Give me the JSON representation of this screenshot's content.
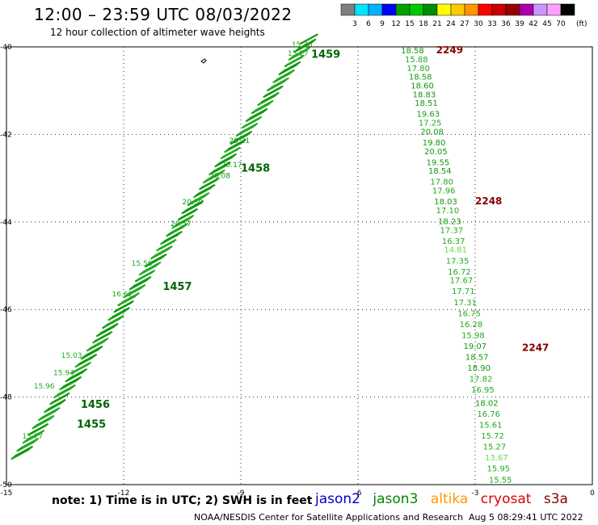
{
  "header": {
    "title": "12:00 – 23:59 UTC 08/03/2022",
    "subtitle": "12 hour collection of altimeter wave heights"
  },
  "color_scale": {
    "unit": "(ft)",
    "labels": [
      "3",
      "6",
      "9",
      "12",
      "15",
      "18",
      "21",
      "24",
      "27",
      "30",
      "33",
      "36",
      "39",
      "42",
      "45",
      "70"
    ],
    "colors": [
      "#7f7f7f",
      "#00e5ff",
      "#00b2ff",
      "#0000ff",
      "#00a000",
      "#00c800",
      "#008c00",
      "#ffff00",
      "#ffc800",
      "#ff9600",
      "#ff0000",
      "#c80000",
      "#960000",
      "#aa00aa",
      "#c896ff",
      "#ffa0ff",
      "#000000"
    ]
  },
  "footer": {
    "note": "note:  1) Time is in UTC;  2) SWH is in feet",
    "satellites": [
      {
        "name": "jason2",
        "color": "#0000cc"
      },
      {
        "name": "jason3",
        "color": "#008800"
      },
      {
        "name": "altika",
        "color": "#ff9900"
      },
      {
        "name": "cryosat",
        "color": "#dd0000"
      },
      {
        "name": "s3a",
        "color": "#880000"
      }
    ],
    "credit": "NOAA/NESDIS Center for Satellite Applications and Research",
    "timestamp": "Aug  5 08:29:41 UTC 2022"
  },
  "chart_data": {
    "type": "scatter",
    "x_ticks": [
      -15,
      -12,
      -9,
      -6,
      -3,
      0
    ],
    "y_ticks": [
      -40,
      -42,
      -44,
      -46,
      -48,
      -50
    ],
    "xlim": [
      -15,
      0
    ],
    "ylim": [
      -50,
      -40
    ],
    "grid": true,
    "tracks": [
      {
        "name": "2249/2248/2247 pass",
        "color": "#00a000",
        "points": [
          {
            "lon": -4.9,
            "lat": -40.15,
            "swh": 18.58
          },
          {
            "lon": -4.8,
            "lat": -40.35,
            "swh": 15.88
          },
          {
            "lon": -4.75,
            "lat": -40.55,
            "swh": 17.8
          },
          {
            "lon": -4.7,
            "lat": -40.75,
            "swh": 18.58
          },
          {
            "lon": -4.65,
            "lat": -40.95,
            "swh": 18.6
          },
          {
            "lon": -4.6,
            "lat": -41.15,
            "swh": 18.83
          },
          {
            "lon": -4.55,
            "lat": -41.35,
            "swh": 18.51
          },
          {
            "lon": -4.5,
            "lat": -41.6,
            "swh": 19.63
          },
          {
            "lon": -4.45,
            "lat": -41.8,
            "swh": 17.25
          },
          {
            "lon": -4.4,
            "lat": -42.0,
            "swh": 20.08
          },
          {
            "lon": -4.35,
            "lat": -42.25,
            "swh": 19.8
          },
          {
            "lon": -4.3,
            "lat": -42.45,
            "swh": 20.05
          },
          {
            "lon": -4.25,
            "lat": -42.7,
            "swh": 19.55
          },
          {
            "lon": -4.2,
            "lat": -42.9,
            "swh": 18.54
          },
          {
            "lon": -4.15,
            "lat": -43.15,
            "swh": 17.8
          },
          {
            "lon": -4.1,
            "lat": -43.35,
            "swh": 17.96
          },
          {
            "lon": -4.05,
            "lat": -43.6,
            "swh": 18.03
          },
          {
            "lon": -4.0,
            "lat": -43.8,
            "swh": 17.1
          },
          {
            "lon": -3.95,
            "lat": -44.05,
            "swh": 18.23
          },
          {
            "lon": -3.9,
            "lat": -44.25,
            "swh": 17.37
          },
          {
            "lon": -3.85,
            "lat": -44.5,
            "swh": 16.37
          },
          {
            "lon": -3.8,
            "lat": -44.7,
            "swh": 14.81
          },
          {
            "lon": -3.75,
            "lat": -44.95,
            "swh": 17.35
          },
          {
            "lon": -3.7,
            "lat": -45.2,
            "swh": 16.72
          },
          {
            "lon": -3.65,
            "lat": -45.4,
            "swh": 17.67
          },
          {
            "lon": -3.6,
            "lat": -45.65,
            "swh": 17.71
          },
          {
            "lon": -3.55,
            "lat": -45.9,
            "swh": 17.31
          },
          {
            "lon": -3.45,
            "lat": -46.15,
            "swh": 16.75
          },
          {
            "lon": -3.4,
            "lat": -46.4,
            "swh": 16.28
          },
          {
            "lon": -3.35,
            "lat": -46.65,
            "swh": 15.98
          },
          {
            "lon": -3.3,
            "lat": -46.9,
            "swh": 19.07
          },
          {
            "lon": -3.25,
            "lat": -47.15,
            "swh": 18.57
          },
          {
            "lon": -3.2,
            "lat": -47.4,
            "swh": 18.9
          },
          {
            "lon": -3.15,
            "lat": -47.65,
            "swh": 17.82
          },
          {
            "lon": -3.1,
            "lat": -47.9,
            "swh": 16.95
          },
          {
            "lon": -3.0,
            "lat": -48.2,
            "swh": 18.02
          },
          {
            "lon": -2.95,
            "lat": -48.45,
            "swh": 16.76
          },
          {
            "lon": -2.9,
            "lat": -48.7,
            "swh": 15.61
          },
          {
            "lon": -2.85,
            "lat": -48.95,
            "swh": 15.72
          },
          {
            "lon": -2.8,
            "lat": -49.2,
            "swh": 15.27
          },
          {
            "lon": -2.75,
            "lat": -49.45,
            "swh": 13.67
          },
          {
            "lon": -2.7,
            "lat": -49.7,
            "swh": 15.95
          },
          {
            "lon": -2.65,
            "lat": -49.95,
            "swh": 15.55
          }
        ],
        "time_labels": [
          {
            "text": "2249",
            "lon": -4.0,
            "lat": -40.15,
            "color": "#880000"
          },
          {
            "text": "2248",
            "lon": -3.0,
            "lat": -43.6,
            "color": "#880000"
          },
          {
            "text": "2247",
            "lon": -1.8,
            "lat": -46.95,
            "color": "#880000"
          }
        ]
      },
      {
        "name": "1455–1459 pass",
        "color": "#008c00",
        "time_labels": [
          {
            "text": "1459",
            "lon": -7.2,
            "lat": -40.25,
            "color": "#006400"
          },
          {
            "text": "1458",
            "lon": -9.0,
            "lat": -42.85,
            "color": "#006400"
          },
          {
            "text": "1457",
            "lon": -11.0,
            "lat": -45.55,
            "color": "#006400"
          },
          {
            "text": "1456",
            "lon": -13.1,
            "lat": -48.25,
            "color": "#006400"
          },
          {
            "text": "1455",
            "lon": -13.2,
            "lat": -48.7,
            "color": "#006400"
          }
        ],
        "samples": [
          {
            "lon": -14.6,
            "lat": -48.95,
            "swh": 15.77
          },
          {
            "lon": -14.3,
            "lat": -47.8,
            "swh": 15.96
          },
          {
            "lon": -13.8,
            "lat": -47.5,
            "swh": 15.94
          },
          {
            "lon": -13.6,
            "lat": -47.1,
            "swh": 15.03
          },
          {
            "lon": -12.3,
            "lat": -45.7,
            "swh": 16.62
          },
          {
            "lon": -11.8,
            "lat": -45.0,
            "swh": 15.56
          },
          {
            "lon": -10.8,
            "lat": -44.1,
            "swh": 20.57
          },
          {
            "lon": -10.5,
            "lat": -43.6,
            "swh": 20.3
          },
          {
            "lon": -9.8,
            "lat": -43.0,
            "swh": 20.08
          },
          {
            "lon": -9.5,
            "lat": -42.75,
            "swh": 20.17
          },
          {
            "lon": -9.3,
            "lat": -42.2,
            "swh": 20.21
          },
          {
            "lon": -7.7,
            "lat": -40.0,
            "swh": 15.36
          },
          {
            "lon": -7.8,
            "lat": -40.2,
            "swh": 15.27
          }
        ]
      }
    ]
  }
}
